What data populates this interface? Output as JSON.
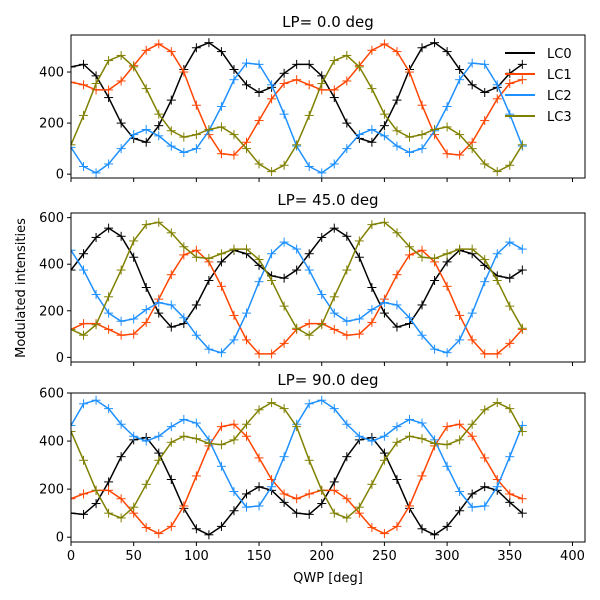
{
  "chart_data": {
    "type": "line",
    "xlabel": "QWP [deg]",
    "ylabel": "Modulated intensities",
    "xlim": [
      0,
      410
    ],
    "xticks": [
      0,
      50,
      100,
      150,
      200,
      250,
      300,
      350,
      400
    ],
    "grid": false,
    "marker": "+",
    "legend": {
      "placement": "top-right",
      "panel": 0,
      "entries": [
        "LC0",
        "LC1",
        "LC2",
        "LC3"
      ]
    },
    "colors": {
      "LC0": "#000000",
      "LC1": "#ff4500",
      "LC2": "#1e90ff",
      "LC3": "#808000"
    },
    "x": [
      0,
      10,
      20,
      30,
      40,
      50,
      60,
      70,
      80,
      90,
      100,
      110,
      120,
      130,
      140,
      150,
      160,
      170,
      180,
      190,
      200,
      210,
      220,
      230,
      240,
      250,
      260,
      270,
      280,
      290,
      300,
      310,
      320,
      330,
      340,
      350,
      360
    ],
    "panels": [
      {
        "title": "LP=   0.0 deg",
        "ylim": [
          -15,
          545
        ],
        "yticks": [
          0,
          200,
          400
        ],
        "series": [
          {
            "name": "LC0",
            "values": [
              420,
              430,
              385,
              300,
              200,
              140,
              125,
              190,
              290,
              410,
              495,
              515,
              480,
              410,
              350,
              320,
              340,
              395,
              430,
              430,
              385,
              300,
              200,
              140,
              125,
              190,
              290,
              410,
              495,
              515,
              480,
              410,
              350,
              320,
              340,
              395,
              430
            ]
          },
          {
            "name": "LC1",
            "values": [
              360,
              350,
              330,
              330,
              365,
              425,
              485,
              510,
              480,
              400,
              270,
              155,
              80,
              75,
              125,
              210,
              295,
              355,
              370,
              350,
              330,
              330,
              365,
              425,
              485,
              510,
              480,
              400,
              270,
              155,
              80,
              75,
              125,
              210,
              295,
              355,
              370
            ]
          },
          {
            "name": "LC2",
            "values": [
              105,
              30,
              5,
              40,
              100,
              155,
              175,
              150,
              110,
              85,
              100,
              170,
              265,
              370,
              435,
              430,
              350,
              235,
              110,
              30,
              5,
              40,
              100,
              155,
              175,
              150,
              110,
              85,
              100,
              170,
              265,
              370,
              435,
              430,
              350,
              235,
              110
            ]
          },
          {
            "name": "LC3",
            "values": [
              115,
              230,
              355,
              445,
              465,
              420,
              335,
              235,
              170,
              145,
              155,
              175,
              185,
              155,
              100,
              40,
              10,
              35,
              115,
              230,
              355,
              445,
              465,
              420,
              335,
              235,
              170,
              145,
              155,
              175,
              185,
              155,
              100,
              40,
              10,
              35,
              115
            ]
          }
        ]
      },
      {
        "title": "LP=  45.0 deg",
        "ylim": [
          -20,
          620
        ],
        "yticks": [
          0,
          200,
          400,
          600
        ],
        "series": [
          {
            "name": "LC0",
            "values": [
              375,
              445,
              515,
              555,
              520,
              430,
              300,
              190,
              130,
              145,
              225,
              330,
              410,
              460,
              445,
              395,
              350,
              340,
              375,
              445,
              515,
              555,
              520,
              430,
              300,
              190,
              130,
              145,
              225,
              330,
              410,
              460,
              445,
              395,
              350,
              340,
              375
            ]
          },
          {
            "name": "LC1",
            "values": [
              120,
              145,
              145,
              120,
              95,
              100,
              150,
              250,
              355,
              440,
              460,
              410,
              305,
              180,
              75,
              15,
              15,
              60,
              120,
              145,
              145,
              120,
              95,
              100,
              150,
              250,
              355,
              440,
              460,
              410,
              305,
              180,
              75,
              15,
              15,
              60,
              120
            ]
          },
          {
            "name": "LC2",
            "values": [
              460,
              375,
              270,
              190,
              155,
              165,
              205,
              235,
              225,
              170,
              95,
              35,
              20,
              75,
              190,
              325,
              445,
              495,
              465,
              375,
              270,
              190,
              155,
              165,
              205,
              235,
              225,
              170,
              95,
              35,
              20,
              75,
              190,
              325,
              445,
              495,
              465
            ]
          },
          {
            "name": "LC3",
            "values": [
              120,
              95,
              140,
              260,
              375,
              500,
              570,
              580,
              535,
              475,
              430,
              425,
              445,
              465,
              465,
              420,
              330,
              220,
              125,
              95,
              140,
              260,
              375,
              500,
              570,
              580,
              535,
              475,
              430,
              425,
              445,
              465,
              465,
              420,
              330,
              220,
              125
            ]
          }
        ]
      },
      {
        "title": "LP=  90.0 deg",
        "ylim": [
          -20,
          600
        ],
        "yticks": [
          0,
          200,
          400,
          600
        ],
        "series": [
          {
            "name": "LC0",
            "values": [
              100,
              95,
              140,
              230,
              335,
              405,
              415,
              350,
              240,
              120,
              35,
              10,
              45,
              110,
              180,
              210,
              195,
              145,
              100,
              95,
              140,
              230,
              335,
              405,
              415,
              350,
              240,
              120,
              35,
              10,
              45,
              110,
              180,
              210,
              195,
              145,
              100
            ]
          },
          {
            "name": "LC1",
            "values": [
              160,
              180,
              195,
              195,
              160,
              100,
              40,
              15,
              45,
              130,
              255,
              380,
              460,
              470,
              420,
              330,
              240,
              180,
              160,
              180,
              195,
              195,
              160,
              100,
              40,
              15,
              45,
              130,
              255,
              380,
              460,
              470,
              420,
              330,
              240,
              180,
              160
            ]
          },
          {
            "name": "LC2",
            "values": [
              465,
              555,
              570,
              535,
              470,
              420,
              400,
              420,
              460,
              490,
              475,
              405,
              295,
              190,
              125,
              130,
              210,
              335,
              470,
              555,
              570,
              535,
              470,
              420,
              400,
              420,
              460,
              490,
              475,
              405,
              295,
              190,
              125,
              130,
              210,
              335,
              465
            ]
          },
          {
            "name": "LC3",
            "values": [
              440,
              320,
              195,
              100,
              80,
              125,
              220,
              320,
              395,
              420,
              410,
              390,
              385,
              405,
              470,
              530,
              560,
              535,
              460,
              320,
              195,
              100,
              80,
              125,
              220,
              320,
              395,
              420,
              410,
              390,
              385,
              405,
              470,
              530,
              560,
              535,
              440
            ]
          }
        ]
      }
    ]
  }
}
